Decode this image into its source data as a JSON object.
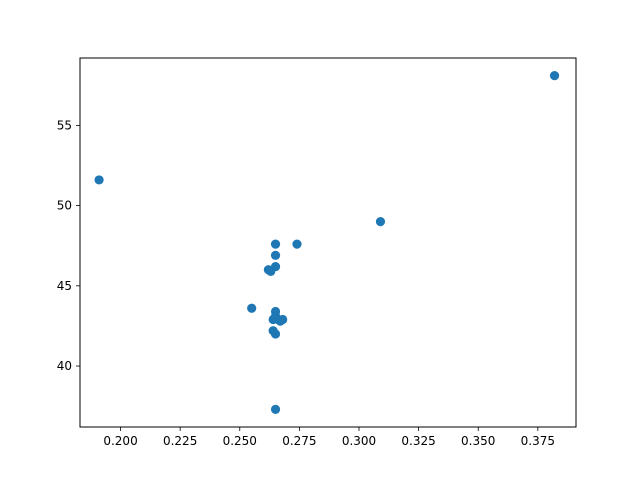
{
  "chart_data": {
    "type": "scatter",
    "title": "",
    "xlabel": "",
    "ylabel": "",
    "xlim": [
      0.183,
      0.391
    ],
    "ylim": [
      36.2,
      59.2
    ],
    "xticks": [
      0.2,
      0.225,
      0.25,
      0.275,
      0.3,
      0.325,
      0.35,
      0.375
    ],
    "xtick_labels": [
      "0.200",
      "0.225",
      "0.250",
      "0.275",
      "0.300",
      "0.325",
      "0.350",
      "0.375"
    ],
    "yticks": [
      40,
      45,
      50,
      55
    ],
    "ytick_labels": [
      "40",
      "45",
      "50",
      "55"
    ],
    "grid": false,
    "colors": {
      "marker": "#1f77b4",
      "axes": "#000000",
      "background": "#ffffff"
    },
    "series": [
      {
        "x": [
          0.382,
          0.191,
          0.309,
          0.265,
          0.274,
          0.265,
          0.265,
          0.262,
          0.263,
          0.255,
          0.265,
          0.265,
          0.266,
          0.268,
          0.264,
          0.267,
          0.264,
          0.265,
          0.265
        ],
        "y": [
          58.1,
          51.6,
          49.0,
          47.6,
          47.6,
          46.9,
          46.2,
          46.0,
          45.9,
          43.6,
          43.4,
          43.1,
          42.9,
          42.9,
          42.9,
          42.8,
          42.2,
          42.0,
          37.3
        ]
      }
    ]
  }
}
